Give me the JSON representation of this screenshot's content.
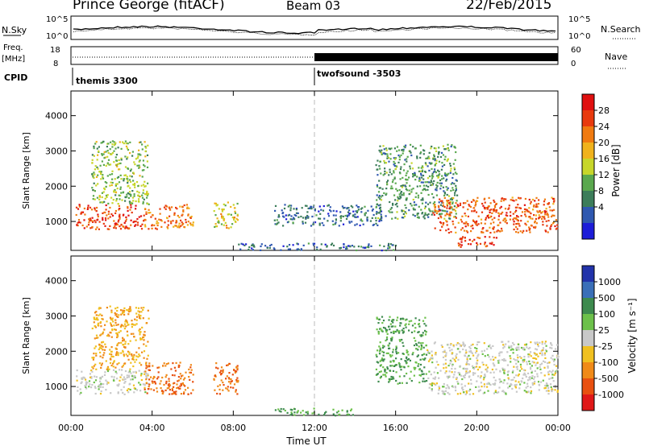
{
  "header": {
    "station": "Prince George (fitACF)",
    "beam": "Beam 03",
    "date": "22/Feb/2015"
  },
  "top_panels": {
    "nsky_label": "N.Sky",
    "nsearch_label": "N.Search",
    "scale_top": "10^5",
    "scale_bottom": "10^0",
    "freq_label_1": "Freq.",
    "freq_label_2": "[MHz]",
    "freq_ticks": [
      "18",
      "8"
    ],
    "nave_label": "Nave",
    "nave_ticks": [
      "60",
      "0"
    ],
    "cpid_label": "CPID",
    "cpid_1": "themis 3300",
    "cpid_2": "twofsound -3503"
  },
  "axes": {
    "ylabel": "Slant Range [km]",
    "xlabel": "Time UT",
    "yticks": [
      "1000",
      "2000",
      "3000",
      "4000"
    ],
    "xticks": [
      "00:00",
      "04:00",
      "08:00",
      "12:00",
      "16:00",
      "20:00",
      "00:00"
    ]
  },
  "colorbars": {
    "power": {
      "label": "Power [dB]",
      "ticks": [
        "4",
        "8",
        "12",
        "16",
        "20",
        "24",
        "28"
      ],
      "colors": [
        "#1c1cd8",
        "#2f58b0",
        "#3c7d5a",
        "#5aa84e",
        "#c7d62a",
        "#f0b21c",
        "#f07a10",
        "#e83a0e",
        "#e01010"
      ]
    },
    "velocity": {
      "label": "Velocity [m s⁻¹]",
      "ticks": [
        "1000",
        "500",
        "100",
        "25",
        "-25",
        "-100",
        "-500",
        "-1000"
      ],
      "colors": [
        "#2233aa",
        "#3a6fb8",
        "#3d8a4e",
        "#6cc04a",
        "#c8c8c8",
        "#f0c020",
        "#f08a18",
        "#e85010",
        "#e01818"
      ]
    }
  },
  "chart_data": [
    {
      "type": "heatmap",
      "title": "Power [dB]",
      "xlabel": "Time UT",
      "ylabel": "Slant Range [km]",
      "xlim": [
        0,
        24
      ],
      "ylim": [
        180,
        4700
      ],
      "regions": [
        {
          "t0": 0.2,
          "t1": 3.6,
          "r0": 800,
          "r1": 1500,
          "value": 28
        },
        {
          "t0": 1.0,
          "t1": 3.8,
          "r0": 1500,
          "r1": 3300,
          "value": 14
        },
        {
          "t0": 3.6,
          "t1": 6.0,
          "r0": 800,
          "r1": 1500,
          "value": 24
        },
        {
          "t0": 7.0,
          "t1": 8.2,
          "r0": 800,
          "r1": 1600,
          "value": 18
        },
        {
          "t0": 10.0,
          "t1": 15.3,
          "r0": 900,
          "r1": 1500,
          "value": 6
        },
        {
          "t0": 8.0,
          "t1": 16.0,
          "r0": 200,
          "r1": 400,
          "value": 6
        },
        {
          "t0": 15.0,
          "t1": 19.0,
          "r0": 1100,
          "r1": 3200,
          "value": 10
        },
        {
          "t0": 17.8,
          "t1": 24.0,
          "r0": 700,
          "r1": 1700,
          "value": 26
        },
        {
          "t0": 19.0,
          "t1": 21.0,
          "r0": 300,
          "r1": 600,
          "value": 28
        }
      ]
    },
    {
      "type": "heatmap",
      "title": "Velocity [m s⁻¹]",
      "xlabel": "Time UT",
      "ylabel": "Slant Range [km]",
      "xlim": [
        0,
        24
      ],
      "ylim": [
        180,
        4700
      ],
      "regions": [
        {
          "t0": 0.2,
          "t1": 3.8,
          "r0": 800,
          "r1": 1500,
          "value": 0
        },
        {
          "t0": 1.0,
          "t1": 3.8,
          "r0": 1500,
          "r1": 3300,
          "value": -100
        },
        {
          "t0": 3.6,
          "t1": 6.0,
          "r0": 800,
          "r1": 1700,
          "value": -500
        },
        {
          "t0": 7.0,
          "t1": 8.2,
          "r0": 800,
          "r1": 1700,
          "value": -500
        },
        {
          "t0": 10.0,
          "t1": 14.0,
          "r0": 200,
          "r1": 400,
          "value": 100
        },
        {
          "t0": 15.0,
          "t1": 17.5,
          "r0": 1100,
          "r1": 3000,
          "value": 100
        },
        {
          "t0": 17.5,
          "t1": 24.0,
          "r0": 800,
          "r1": 2300,
          "value": 0
        }
      ]
    }
  ]
}
